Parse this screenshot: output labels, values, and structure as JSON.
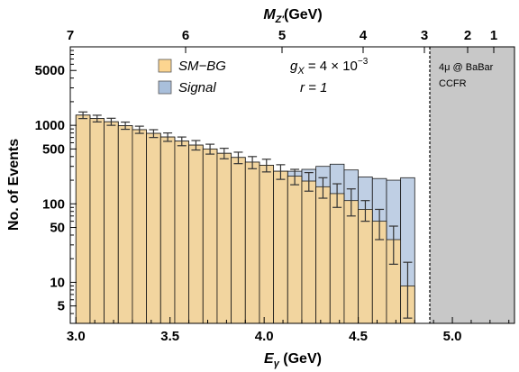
{
  "chart_data": {
    "type": "bar",
    "title": "",
    "xlabel_main": "E",
    "xlabel_sub": "γ",
    "xlabel_unit": "(GeV)",
    "ylabel": "No. of Events",
    "top_axis_label_main": "M",
    "top_axis_label_sub": "Z'",
    "top_axis_label_unit": "(GeV)",
    "x_range": [
      2.97,
      5.33
    ],
    "y_scale": "log",
    "y_range": [
      3,
      10000
    ],
    "bin_edges": [
      3.0,
      3.075,
      3.15,
      3.225,
      3.3,
      3.375,
      3.45,
      3.525,
      3.6,
      3.675,
      3.75,
      3.825,
      3.9,
      3.975,
      4.05,
      4.125,
      4.2,
      4.275,
      4.35,
      4.425,
      4.5,
      4.575,
      4.65,
      4.725,
      4.8,
      4.875,
      4.95,
      5.025,
      5.1,
      5.175,
      5.25
    ],
    "bottom_ticks": [
      {
        "value": 3.0,
        "label": "3.0"
      },
      {
        "value": 3.5,
        "label": "3.5"
      },
      {
        "value": 4.0,
        "label": "4.0"
      },
      {
        "value": 4.5,
        "label": "4.5"
      },
      {
        "value": 5.0,
        "label": "5.0"
      }
    ],
    "left_ticks": [
      {
        "value": 5,
        "label": "5"
      },
      {
        "value": 10,
        "label": "10"
      },
      {
        "value": 50,
        "label": "50"
      },
      {
        "value": 100,
        "label": "100"
      },
      {
        "value": 500,
        "label": "500"
      },
      {
        "value": 1000,
        "label": "1000"
      },
      {
        "value": 5000,
        "label": "5000"
      }
    ],
    "top_ticks": [
      {
        "energy": 3.0,
        "label": "7"
      },
      {
        "energy": 3.65,
        "label": "6"
      },
      {
        "energy": 4.33,
        "label": "5"
      },
      {
        "energy": 4.9,
        "label": "4"
      },
      {
        "energy": 5.35,
        "label": "3"
      },
      {
        "energy": 5.65,
        "label": "2"
      },
      {
        "energy": 5.85,
        "label": "1"
      }
    ],
    "series": [
      {
        "name": "SM−BG",
        "color": "#FCD590",
        "values": [
          1350,
          1220,
          1110,
          990,
          880,
          790,
          710,
          630,
          560,
          500,
          440,
          390,
          340,
          310,
          260,
          225,
          195,
          165,
          135,
          110,
          85,
          60,
          35,
          9
        ]
      },
      {
        "name": "Signal",
        "color": "#A9BFDB",
        "values": [
          1350,
          1220,
          1110,
          990,
          880,
          790,
          710,
          630,
          560,
          500,
          440,
          390,
          340,
          310,
          260,
          260,
          275,
          300,
          320,
          270,
          220,
          210,
          200,
          215
        ]
      }
    ],
    "error_bars_low": [
      1220,
      1105,
      1000,
      890,
      790,
      700,
      625,
      550,
      485,
      430,
      375,
      325,
      280,
      255,
      205,
      175,
      145,
      118,
      90,
      70,
      60,
      35,
      17,
      3.5
    ],
    "error_bars_high": [
      1480,
      1345,
      1230,
      1100,
      975,
      880,
      800,
      710,
      640,
      575,
      510,
      455,
      400,
      370,
      315,
      275,
      250,
      215,
      180,
      155,
      110,
      85,
      52,
      18
    ],
    "legend": [
      {
        "label": "SM−BG",
        "color": "#FCD590"
      },
      {
        "label": "Signal",
        "color": "#A9BFDB"
      }
    ],
    "annotations": {
      "coupling": "g_X = 4 × 10^−3",
      "coupling_main": "g",
      "coupling_sub": "X",
      "coupling_eq": "= 4 × 10",
      "coupling_exp": "−3",
      "ratio": "r = 1"
    },
    "excluded_region": {
      "x_start": 4.88,
      "x_end": 5.33,
      "label_line1": "4μ @ BaBar",
      "label_line2": "CCFR",
      "color": "#C8C8C8"
    }
  }
}
